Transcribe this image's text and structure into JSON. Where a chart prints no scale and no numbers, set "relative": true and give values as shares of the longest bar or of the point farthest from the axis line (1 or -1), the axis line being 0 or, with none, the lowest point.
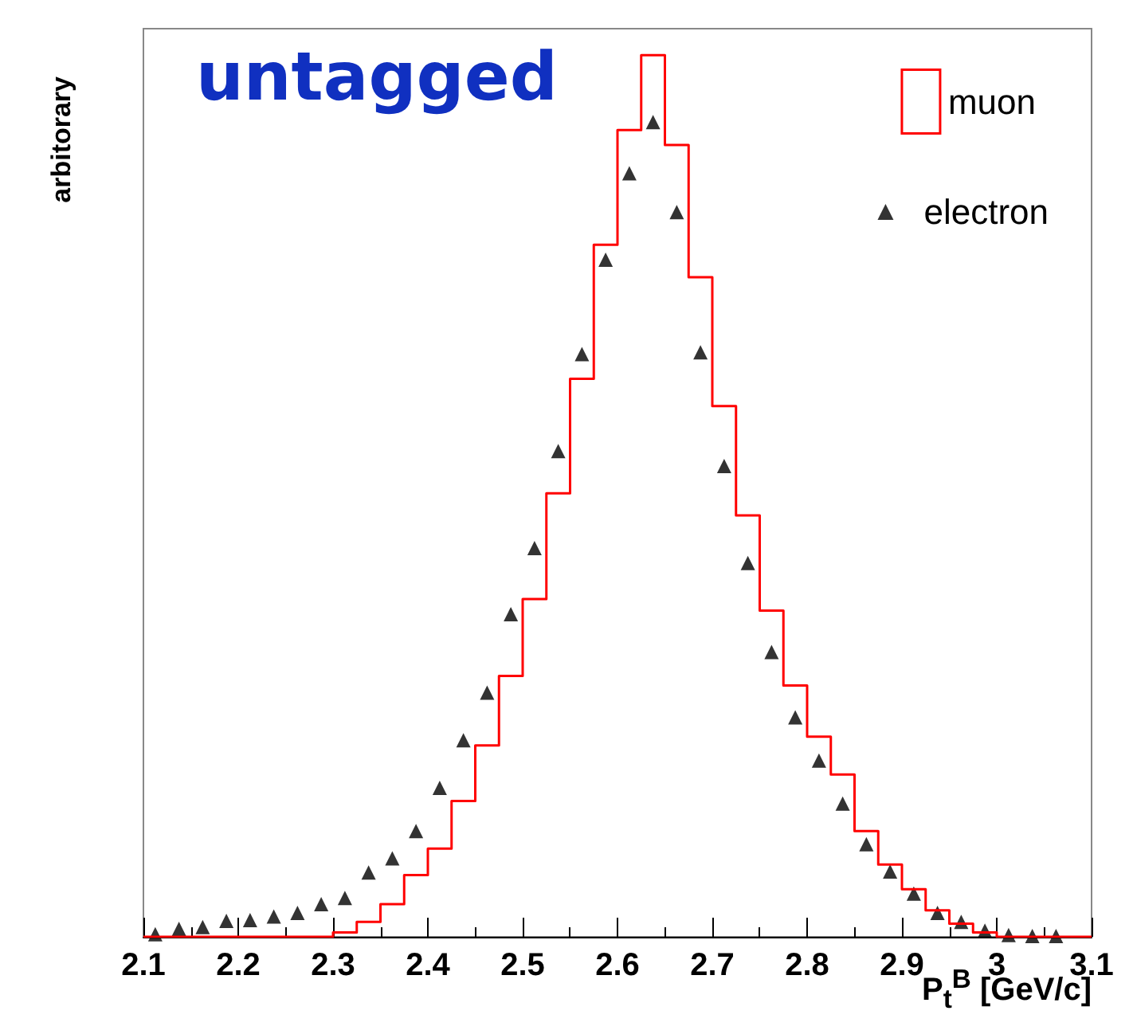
{
  "chart_data": {
    "type": "histogram",
    "title": "untagged",
    "xlabel": "P$_{t}$$^{B}$ [GeV/c]",
    "ylabel": "arbitorary",
    "relative": true,
    "legend": "top right",
    "marker": "triangle",
    "xlim": [
      2.1,
      3.1
    ],
    "xticks": [
      2.1,
      2.2,
      2.3,
      2.4,
      2.5,
      2.6,
      2.7,
      2.8,
      2.9,
      {
        "value": 3,
        "label": "3"
      },
      3.1
    ],
    "bins": [
      2.1,
      2.125,
      2.15,
      2.175,
      2.2,
      2.225,
      2.25,
      2.275,
      2.3,
      2.325,
      2.35,
      2.375,
      2.4,
      2.425,
      2.45,
      2.475,
      2.5,
      2.525,
      2.55,
      2.575,
      2.6,
      2.625,
      2.65,
      2.675,
      2.7,
      2.725,
      2.75,
      2.775,
      2.8,
      2.825,
      2.85,
      2.875,
      2.9,
      2.925,
      2.95,
      2.975,
      3.0,
      3.025,
      3.05,
      3.075,
      3.1
    ],
    "series": [
      {
        "name": "muon",
        "color": "#ff0000",
        "values": [
          0,
          0,
          0,
          0,
          0,
          0,
          0,
          0,
          0.005,
          0.017,
          0.037,
          0.07,
          0.1,
          0.154,
          0.217,
          0.296,
          0.383,
          0.503,
          0.633,
          0.785,
          0.915,
          1.0,
          0.898,
          0.748,
          0.602,
          0.478,
          0.37,
          0.285,
          0.227,
          0.184,
          0.12,
          0.082,
          0.054,
          0.03,
          0.015,
          0.005,
          0,
          0,
          0,
          0
        ]
      },
      {
        "name": "electron",
        "type": "scatter",
        "color": "#000000",
        "x": [
          2.1125,
          2.1375,
          2.1625,
          2.1875,
          2.2125,
          2.2375,
          2.2625,
          2.2875,
          2.3125,
          2.3375,
          2.3625,
          2.3875,
          2.4125,
          2.4375,
          2.4625,
          2.4875,
          2.5125,
          2.5375,
          2.5625,
          2.5875,
          2.6125,
          2.6375,
          2.6625,
          2.6875,
          2.7125,
          2.7375,
          2.7625,
          2.7875,
          2.8125,
          2.8375,
          2.8625,
          2.8875,
          2.9125,
          2.9375,
          2.9625,
          2.9875,
          3.0125,
          3.0375,
          3.0625
        ],
        "values": [
          0.003,
          0.009,
          0.011,
          0.018,
          0.019,
          0.023,
          0.027,
          0.037,
          0.044,
          0.073,
          0.089,
          0.12,
          0.169,
          0.223,
          0.277,
          0.366,
          0.441,
          0.551,
          0.661,
          0.768,
          0.866,
          0.924,
          0.822,
          0.663,
          0.534,
          0.424,
          0.323,
          0.249,
          0.2,
          0.151,
          0.105,
          0.074,
          0.049,
          0.027,
          0.017,
          0.007,
          0.002,
          0.001,
          0.001
        ]
      }
    ]
  }
}
